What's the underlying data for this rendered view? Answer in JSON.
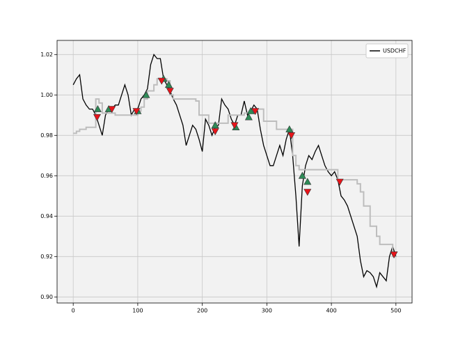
{
  "chart_data": {
    "type": "line",
    "x": [
      0,
      5,
      10,
      15,
      20,
      25,
      30,
      35,
      40,
      45,
      50,
      55,
      60,
      65,
      70,
      75,
      80,
      85,
      90,
      95,
      100,
      105,
      110,
      115,
      120,
      125,
      130,
      135,
      140,
      145,
      150,
      155,
      160,
      165,
      170,
      175,
      180,
      185,
      190,
      195,
      200,
      205,
      210,
      215,
      220,
      225,
      230,
      235,
      240,
      245,
      250,
      255,
      260,
      265,
      270,
      275,
      280,
      285,
      290,
      295,
      300,
      305,
      310,
      315,
      320,
      325,
      330,
      335,
      340,
      345,
      350,
      355,
      360,
      365,
      370,
      375,
      380,
      385,
      390,
      395,
      400,
      405,
      410,
      415,
      420,
      425,
      430,
      435,
      440,
      445,
      450,
      455,
      460,
      465,
      470,
      475,
      480,
      485,
      490,
      495,
      500
    ],
    "series": [
      {
        "name": "USDCHF",
        "color": "#000000",
        "values": [
          1.005,
          1.008,
          1.01,
          0.998,
          0.995,
          0.993,
          0.993,
          0.99,
          0.985,
          0.98,
          0.99,
          0.993,
          0.993,
          0.995,
          0.995,
          1.0,
          1.005,
          1.0,
          0.99,
          0.993,
          0.993,
          0.998,
          1.0,
          1.003,
          1.015,
          1.02,
          1.018,
          1.018,
          1.008,
          1.005,
          1.002,
          0.998,
          0.995,
          0.99,
          0.985,
          0.975,
          0.98,
          0.985,
          0.983,
          0.978,
          0.972,
          0.988,
          0.985,
          0.98,
          0.984,
          0.985,
          0.998,
          0.995,
          0.993,
          0.988,
          0.985,
          0.99,
          0.99,
          0.997,
          0.99,
          0.992,
          0.995,
          0.993,
          0.983,
          0.975,
          0.97,
          0.965,
          0.965,
          0.97,
          0.975,
          0.97,
          0.978,
          0.983,
          0.97,
          0.95,
          0.925,
          0.955,
          0.965,
          0.97,
          0.968,
          0.972,
          0.975,
          0.97,
          0.965,
          0.962,
          0.96,
          0.962,
          0.958,
          0.95,
          0.948,
          0.945,
          0.94,
          0.935,
          0.93,
          0.918,
          0.91,
          0.913,
          0.912,
          0.91,
          0.905,
          0.912,
          0.91,
          0.908,
          0.92,
          0.925,
          0.92
        ]
      },
      {
        "color": "#bdbdbd",
        "drawstyle": "steps",
        "values": [
          0.981,
          0.982,
          0.983,
          0.983,
          0.984,
          0.984,
          0.984,
          0.998,
          0.996,
          0.991,
          0.991,
          0.991,
          0.991,
          0.99,
          0.99,
          0.99,
          0.99,
          0.99,
          0.99,
          0.99,
          0.992,
          0.994,
          0.998,
          1.002,
          1.002,
          1.005,
          1.008,
          1.008,
          1.008,
          1.007,
          1.0,
          0.998,
          0.998,
          0.998,
          0.998,
          0.998,
          0.998,
          0.998,
          0.997,
          0.99,
          0.99,
          0.99,
          0.986,
          0.986,
          0.986,
          0.986,
          0.986,
          0.986,
          0.99,
          0.99,
          0.99,
          0.99,
          0.99,
          0.991,
          0.991,
          0.991,
          0.993,
          0.993,
          0.993,
          0.987,
          0.987,
          0.987,
          0.987,
          0.983,
          0.983,
          0.983,
          0.983,
          0.983,
          0.97,
          0.965,
          0.963,
          0.963,
          0.963,
          0.963,
          0.963,
          0.963,
          0.963,
          0.963,
          0.963,
          0.963,
          0.963,
          0.963,
          0.958,
          0.958,
          0.958,
          0.958,
          0.958,
          0.958,
          0.956,
          0.952,
          0.945,
          0.945,
          0.935,
          0.935,
          0.93,
          0.926,
          0.926,
          0.926,
          0.926,
          0.92,
          0.92
        ]
      },
      {
        "color": "#2e8b57",
        "marker": "^",
        "x": [
          38,
          55,
          100,
          113,
          140,
          148,
          220,
          252,
          272,
          275,
          335,
          355,
          363
        ],
        "values": [
          0.993,
          0.993,
          0.992,
          1.0,
          1.008,
          1.005,
          0.985,
          0.984,
          0.989,
          0.992,
          0.983,
          0.96,
          0.957
        ]
      },
      {
        "color": "#e8141a",
        "marker": "v",
        "x": [
          37,
          60,
          98,
          137,
          150,
          220,
          250,
          282,
          338,
          363,
          413,
          497
        ],
        "values": [
          0.989,
          0.993,
          0.992,
          1.007,
          1.002,
          0.982,
          0.985,
          0.992,
          0.98,
          0.952,
          0.957,
          0.921
        ]
      }
    ],
    "xlim": [
      -25,
      525
    ],
    "xticks": [
      0,
      100,
      200,
      300,
      400,
      500
    ],
    "ylim": [
      0.897,
      1.027
    ],
    "yticks": [
      {
        "value": 0.9,
        "label": "0.90"
      },
      0.92,
      0.94,
      0.96,
      0.98,
      {
        "value": 1.0,
        "label": "1.00"
      },
      1.02
    ],
    "grid": true,
    "legend": "upper right"
  }
}
